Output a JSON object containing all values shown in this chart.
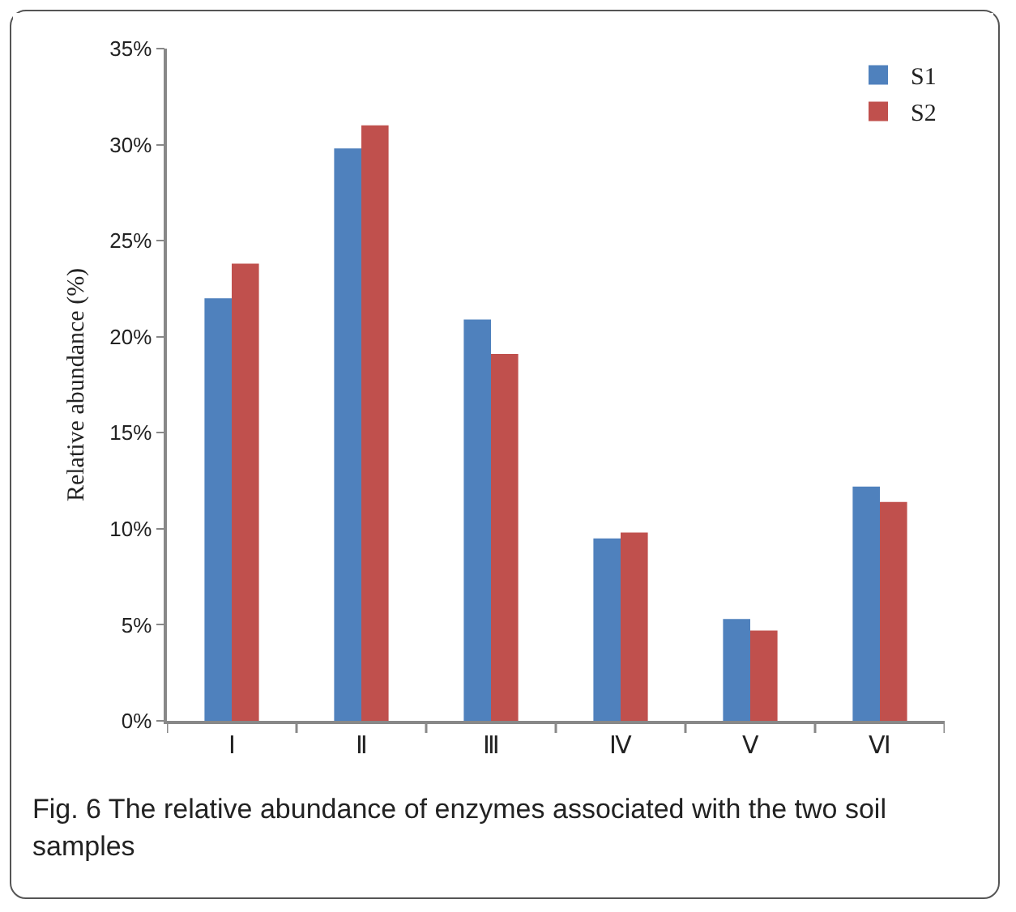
{
  "chart_data": {
    "type": "bar",
    "ylabel": "Relative abundance (%)",
    "categories": [
      "Ⅰ",
      "Ⅱ",
      "Ⅲ",
      "Ⅳ",
      "Ⅴ",
      "Ⅵ"
    ],
    "series": [
      {
        "name": "S1",
        "color": "#4f81bd",
        "values": [
          22.0,
          29.8,
          20.9,
          9.5,
          5.3,
          12.2
        ]
      },
      {
        "name": "S2",
        "color": "#c0504d",
        "values": [
          23.8,
          31.0,
          19.1,
          9.8,
          4.7,
          11.4
        ]
      }
    ],
    "ylim": [
      0,
      35
    ],
    "yticks": [
      {
        "value": 0,
        "label": "0%"
      },
      {
        "value": 5,
        "label": "5%"
      },
      {
        "value": 10,
        "label": "10%"
      },
      {
        "value": 15,
        "label": "15%"
      },
      {
        "value": 20,
        "label": "20%"
      },
      {
        "value": 25,
        "label": "25%"
      },
      {
        "value": 30,
        "label": "30%"
      },
      {
        "value": 35,
        "label": "35%"
      }
    ],
    "grid": false,
    "legend": "top right",
    "annotations": [
      "Fig. 6 The relative abundance of enzymes associated with the two soil samples"
    ]
  }
}
